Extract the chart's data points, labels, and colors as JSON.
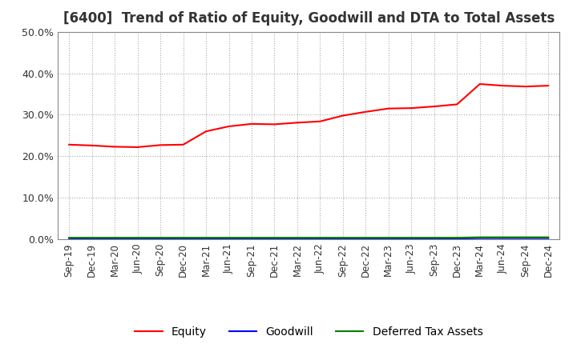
{
  "title": "[6400]  Trend of Ratio of Equity, Goodwill and DTA to Total Assets",
  "x_labels": [
    "Sep-19",
    "Dec-19",
    "Mar-20",
    "Jun-20",
    "Sep-20",
    "Dec-20",
    "Mar-21",
    "Jun-21",
    "Sep-21",
    "Dec-21",
    "Mar-22",
    "Jun-22",
    "Sep-22",
    "Dec-22",
    "Mar-23",
    "Jun-23",
    "Sep-23",
    "Dec-23",
    "Mar-24",
    "Jun-24",
    "Sep-24",
    "Dec-24"
  ],
  "equity": [
    0.228,
    0.226,
    0.223,
    0.222,
    0.227,
    0.228,
    0.26,
    0.272,
    0.278,
    0.277,
    0.281,
    0.284,
    0.298,
    0.307,
    0.315,
    0.316,
    0.32,
    0.325,
    0.374,
    0.37,
    0.368,
    0.37
  ],
  "goodwill": [
    0.002,
    0.002,
    0.002,
    0.002,
    0.002,
    0.002,
    0.002,
    0.002,
    0.002,
    0.002,
    0.002,
    0.002,
    0.002,
    0.002,
    0.002,
    0.002,
    0.002,
    0.002,
    0.003,
    0.003,
    0.003,
    0.003
  ],
  "dta": [
    0.004,
    0.004,
    0.004,
    0.004,
    0.004,
    0.004,
    0.004,
    0.004,
    0.004,
    0.004,
    0.004,
    0.004,
    0.004,
    0.004,
    0.004,
    0.004,
    0.004,
    0.004,
    0.005,
    0.005,
    0.005,
    0.005
  ],
  "equity_color": "#ff0000",
  "goodwill_color": "#0000ff",
  "dta_color": "#008000",
  "ylim": [
    0.0,
    0.5
  ],
  "yticks": [
    0.0,
    0.1,
    0.2,
    0.3,
    0.4,
    0.5
  ],
  "background_color": "#ffffff",
  "plot_bg_color": "#ffffff",
  "grid_color": "#aaaaaa",
  "title_fontsize": 12,
  "legend_labels": [
    "Equity",
    "Goodwill",
    "Deferred Tax Assets"
  ]
}
